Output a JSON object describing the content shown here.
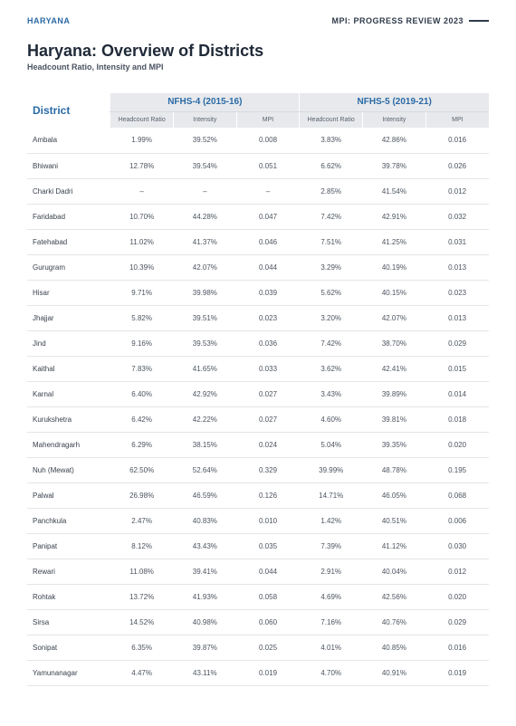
{
  "header": {
    "left": "HARYANA",
    "right": "MPI: PROGRESS REVIEW 2023"
  },
  "title": "Haryana: Overview of Districts",
  "subtitle": "Headcount Ratio, Intensity and MPI",
  "table": {
    "district_label": "District",
    "group4_label": "NFHS-4 (2015-16)",
    "group5_label": "NFHS-5 (2019-21)",
    "sub_headers": [
      "Headcount Ratio",
      "Intensity",
      "MPI"
    ],
    "rows": [
      {
        "d": "Ambala",
        "h4": "1.99%",
        "i4": "39.52%",
        "m4": "0.008",
        "h5": "3.83%",
        "i5": "42.86%",
        "m5": "0.016"
      },
      {
        "d": "Bhiwani",
        "h4": "12.78%",
        "i4": "39.54%",
        "m4": "0.051",
        "h5": "6.62%",
        "i5": "39.78%",
        "m5": "0.026"
      },
      {
        "d": "Charki Dadri",
        "h4": "–",
        "i4": "–",
        "m4": "–",
        "h5": "2.85%",
        "i5": "41.54%",
        "m5": "0.012"
      },
      {
        "d": "Faridabad",
        "h4": "10.70%",
        "i4": "44.28%",
        "m4": "0.047",
        "h5": "7.42%",
        "i5": "42.91%",
        "m5": "0.032"
      },
      {
        "d": "Fatehabad",
        "h4": "11.02%",
        "i4": "41.37%",
        "m4": "0.046",
        "h5": "7.51%",
        "i5": "41.25%",
        "m5": "0.031"
      },
      {
        "d": "Gurugram",
        "h4": "10.39%",
        "i4": "42.07%",
        "m4": "0.044",
        "h5": "3.29%",
        "i5": "40.19%",
        "m5": "0.013"
      },
      {
        "d": "Hisar",
        "h4": "9.71%",
        "i4": "39.98%",
        "m4": "0.039",
        "h5": "5.62%",
        "i5": "40.15%",
        "m5": "0.023"
      },
      {
        "d": "Jhajjar",
        "h4": "5.82%",
        "i4": "39.51%",
        "m4": "0.023",
        "h5": "3.20%",
        "i5": "42.07%",
        "m5": "0.013"
      },
      {
        "d": "Jind",
        "h4": "9.16%",
        "i4": "39.53%",
        "m4": "0.036",
        "h5": "7.42%",
        "i5": "38.70%",
        "m5": "0.029"
      },
      {
        "d": "Kaithal",
        "h4": "7.83%",
        "i4": "41.65%",
        "m4": "0.033",
        "h5": "3.62%",
        "i5": "42.41%",
        "m5": "0.015"
      },
      {
        "d": "Karnal",
        "h4": "6.40%",
        "i4": "42.92%",
        "m4": "0.027",
        "h5": "3.43%",
        "i5": "39.89%",
        "m5": "0.014"
      },
      {
        "d": "Kurukshetra",
        "h4": "6.42%",
        "i4": "42.22%",
        "m4": "0.027",
        "h5": "4.60%",
        "i5": "39.81%",
        "m5": "0.018"
      },
      {
        "d": "Mahendragarh",
        "h4": "6.29%",
        "i4": "38.15%",
        "m4": "0.024",
        "h5": "5.04%",
        "i5": "39.35%",
        "m5": "0.020"
      },
      {
        "d": "Nuh (Mewat)",
        "h4": "62.50%",
        "i4": "52.64%",
        "m4": "0.329",
        "h5": "39.99%",
        "i5": "48.78%",
        "m5": "0.195"
      },
      {
        "d": "Palwal",
        "h4": "26.98%",
        "i4": "46.59%",
        "m4": "0.126",
        "h5": "14.71%",
        "i5": "46.05%",
        "m5": "0.068"
      },
      {
        "d": "Panchkula",
        "h4": "2.47%",
        "i4": "40.83%",
        "m4": "0.010",
        "h5": "1.42%",
        "i5": "40.51%",
        "m5": "0.006"
      },
      {
        "d": "Panipat",
        "h4": "8.12%",
        "i4": "43.43%",
        "m4": "0.035",
        "h5": "7.39%",
        "i5": "41.12%",
        "m5": "0.030"
      },
      {
        "d": "Rewari",
        "h4": "11.08%",
        "i4": "39.41%",
        "m4": "0.044",
        "h5": "2.91%",
        "i5": "40.04%",
        "m5": "0.012"
      },
      {
        "d": "Rohtak",
        "h4": "13.72%",
        "i4": "41.93%",
        "m4": "0.058",
        "h5": "4.69%",
        "i5": "42.56%",
        "m5": "0.020"
      },
      {
        "d": "Sirsa",
        "h4": "14.52%",
        "i4": "40.98%",
        "m4": "0.060",
        "h5": "7.16%",
        "i5": "40.76%",
        "m5": "0.029"
      },
      {
        "d": "Sonipat",
        "h4": "6.35%",
        "i4": "39.87%",
        "m4": "0.025",
        "h5": "4.01%",
        "i5": "40.85%",
        "m5": "0.016"
      },
      {
        "d": "Yamunanagar",
        "h4": "4.47%",
        "i4": "43.11%",
        "m4": "0.019",
        "h5": "4.70%",
        "i5": "40.91%",
        "m5": "0.019"
      }
    ]
  }
}
